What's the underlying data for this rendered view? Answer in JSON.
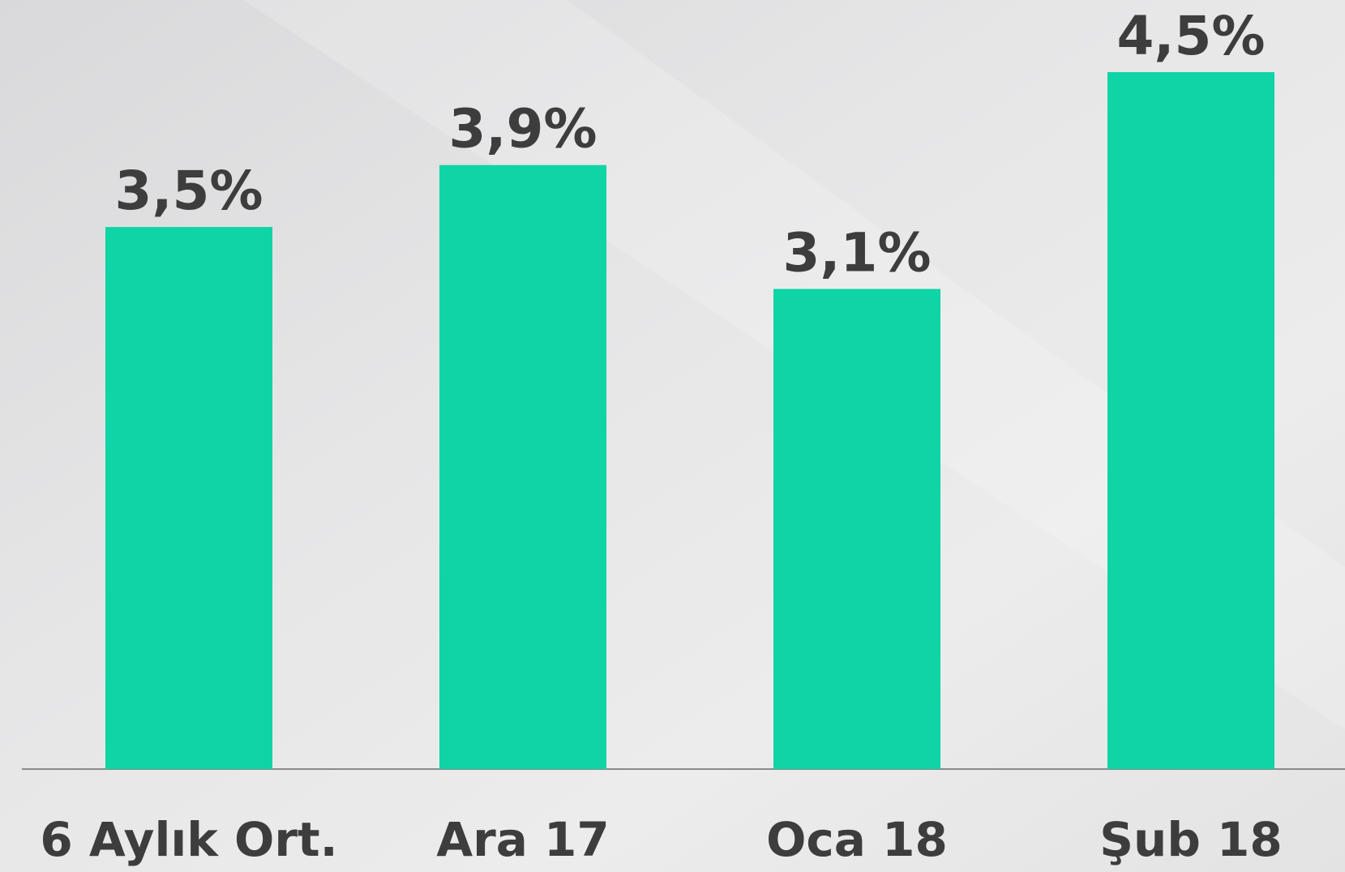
{
  "chart_data": {
    "type": "bar",
    "categories": [
      "6 Aylık Ort.",
      "Ara 17",
      "Oca 18",
      "Şub 18"
    ],
    "values": [
      3.5,
      3.9,
      3.1,
      4.5
    ],
    "value_labels": [
      "3,5%",
      "3,9%",
      "3,1%",
      "4,5%"
    ],
    "color": "#0fd4a5"
  }
}
